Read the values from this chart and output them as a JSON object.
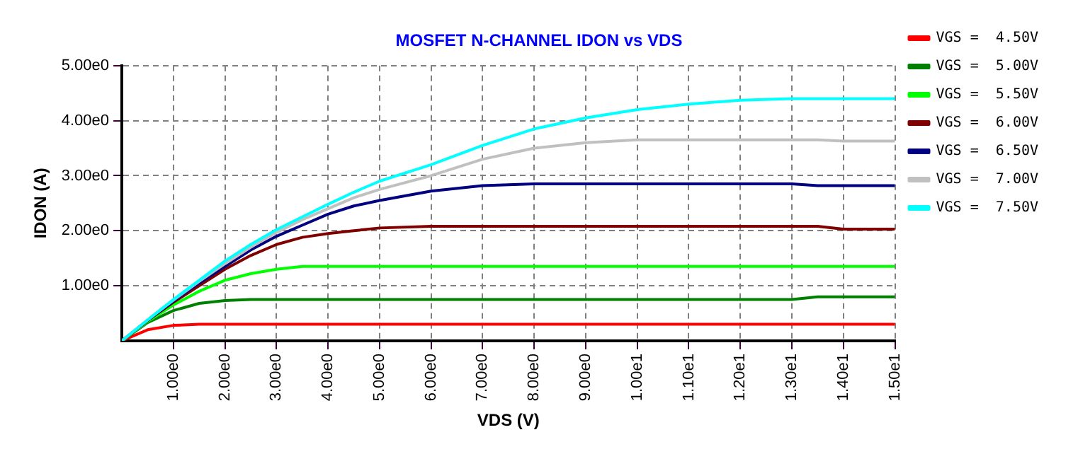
{
  "chart_data": {
    "type": "line",
    "title": "MOSFET N-CHANNEL IDON vs VDS",
    "xlabel": "VDS (V)",
    "ylabel": "IDON (A)",
    "x": [
      0,
      0.5,
      1,
      1.5,
      2,
      2.5,
      3,
      3.5,
      4,
      4.5,
      5,
      6,
      7,
      8,
      9,
      10,
      11,
      12,
      13,
      13.5,
      14,
      15
    ],
    "xlim": [
      0,
      15
    ],
    "xticks": [
      {
        "value": 1,
        "label": "1.00e0"
      },
      {
        "value": 2,
        "label": "2.00e0"
      },
      {
        "value": 3,
        "label": "3.00e0"
      },
      {
        "value": 4,
        "label": "4.00e0"
      },
      {
        "value": 5,
        "label": "5.00e0"
      },
      {
        "value": 6,
        "label": "6.00e0"
      },
      {
        "value": 7,
        "label": "7.00e0"
      },
      {
        "value": 8,
        "label": "8.00e0"
      },
      {
        "value": 9,
        "label": "9.00e0"
      },
      {
        "value": 10,
        "label": "1.00e1"
      },
      {
        "value": 11,
        "label": "1.10e1"
      },
      {
        "value": 12,
        "label": "1.20e1"
      },
      {
        "value": 13,
        "label": "1.30e1"
      },
      {
        "value": 14,
        "label": "1.40e1"
      },
      {
        "value": 15,
        "label": "1.50e1"
      }
    ],
    "ylim": [
      0,
      5
    ],
    "yticks": [
      {
        "value": 1,
        "label": "1.00e0"
      },
      {
        "value": 2,
        "label": "2.00e0"
      },
      {
        "value": 3,
        "label": "3.00e0"
      },
      {
        "value": 4,
        "label": "4.00e0"
      },
      {
        "value": 5,
        "label": "5.00e0"
      }
    ],
    "grid": true,
    "legend": "right",
    "marker": "none",
    "line_style": "solid",
    "series": [
      {
        "name": "VGS =  4.50V",
        "color": "#ff0000",
        "values": [
          0,
          0.2,
          0.28,
          0.3,
          0.3,
          0.3,
          0.3,
          0.3,
          0.3,
          0.3,
          0.3,
          0.3,
          0.3,
          0.3,
          0.3,
          0.3,
          0.3,
          0.3,
          0.3,
          0.3,
          0.3,
          0.3
        ]
      },
      {
        "name": "VGS =  5.00V",
        "color": "#008000",
        "values": [
          0,
          0.33,
          0.55,
          0.68,
          0.73,
          0.75,
          0.75,
          0.75,
          0.75,
          0.75,
          0.75,
          0.75,
          0.75,
          0.75,
          0.75,
          0.75,
          0.75,
          0.75,
          0.75,
          0.8,
          0.8,
          0.8
        ]
      },
      {
        "name": "VGS =  5.50V",
        "color": "#00ff00",
        "values": [
          0,
          0.35,
          0.65,
          0.9,
          1.1,
          1.22,
          1.3,
          1.35,
          1.35,
          1.35,
          1.35,
          1.35,
          1.35,
          1.35,
          1.35,
          1.35,
          1.35,
          1.35,
          1.35,
          1.35,
          1.35,
          1.35
        ]
      },
      {
        "name": "VGS =  6.00V",
        "color": "#800000",
        "values": [
          0,
          0.37,
          0.7,
          1.0,
          1.3,
          1.55,
          1.75,
          1.88,
          1.95,
          2.0,
          2.05,
          2.08,
          2.08,
          2.08,
          2.08,
          2.08,
          2.08,
          2.08,
          2.08,
          2.08,
          2.03,
          2.03
        ]
      },
      {
        "name": "VGS =  6.50V",
        "color": "#000080",
        "values": [
          0,
          0.37,
          0.72,
          1.05,
          1.35,
          1.65,
          1.9,
          2.1,
          2.3,
          2.45,
          2.55,
          2.72,
          2.82,
          2.85,
          2.85,
          2.85,
          2.85,
          2.85,
          2.85,
          2.82,
          2.82,
          2.82
        ]
      },
      {
        "name": "VGS =  7.00V",
        "color": "#c0c0c0",
        "values": [
          0,
          0.38,
          0.74,
          1.08,
          1.4,
          1.7,
          1.97,
          2.2,
          2.4,
          2.6,
          2.75,
          3.0,
          3.3,
          3.5,
          3.6,
          3.65,
          3.65,
          3.65,
          3.65,
          3.65,
          3.63,
          3.63
        ]
      },
      {
        "name": "VGS =  7.50V",
        "color": "#00ffff",
        "values": [
          0,
          0.38,
          0.75,
          1.1,
          1.45,
          1.75,
          2.02,
          2.25,
          2.48,
          2.7,
          2.9,
          3.2,
          3.55,
          3.85,
          4.05,
          4.2,
          4.3,
          4.37,
          4.4,
          4.4,
          4.4,
          4.4
        ]
      }
    ]
  }
}
